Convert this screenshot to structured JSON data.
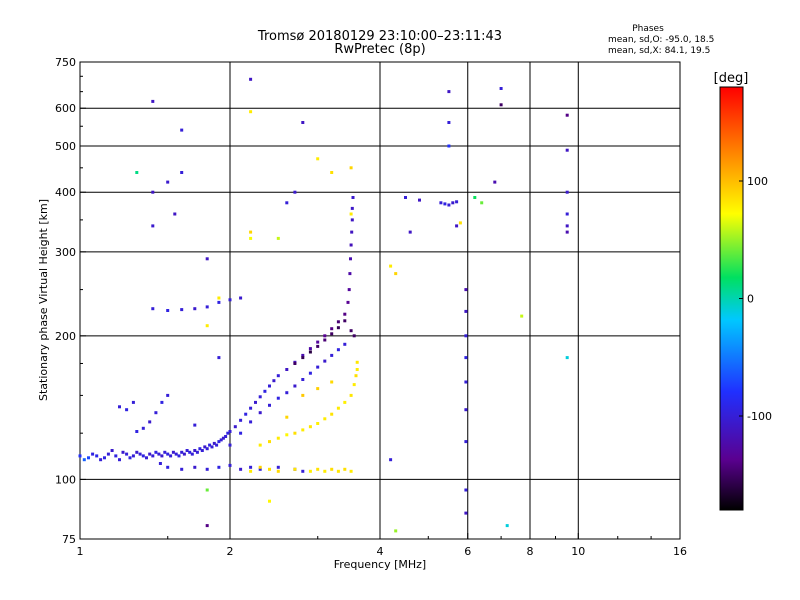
{
  "chart_data": {
    "type": "scatter",
    "title": "Tromsø 20180129 23:10:00–23:11:43",
    "subtitle": "RwPretec (8p)",
    "xlabel": "Frequency [MHz]",
    "ylabel": "Stationary phase Virtual Height [km]",
    "x_scale": "log2",
    "y_scale": "log",
    "xlim": [
      1,
      16
    ],
    "ylim": [
      75,
      750
    ],
    "x_ticks": [
      "1",
      "2",
      "4",
      "6",
      "8",
      "10",
      "16"
    ],
    "x_tick_values": [
      1,
      2,
      4,
      6,
      8,
      10,
      16
    ],
    "x_gridlines": [
      2,
      4,
      6,
      8,
      10
    ],
    "y_ticks": [
      "75",
      "100",
      "200",
      "300",
      "400",
      "500",
      "600",
      "750"
    ],
    "y_tick_values": [
      75,
      100,
      200,
      300,
      400,
      500,
      600,
      750
    ],
    "y_gridlines": [
      100,
      200,
      300,
      400,
      500,
      600
    ],
    "grid": true,
    "stats": {
      "heading": "Phases",
      "line1": "mean, sd,O: -95.0, 18.5",
      "line2": "mean, sd,X:  84.1, 19.5"
    },
    "colorbar": {
      "label": "[deg]",
      "range": [
        -180,
        180
      ],
      "ticks": [
        "100",
        "0",
        "-100"
      ],
      "tick_values": [
        100,
        0,
        -100
      ]
    },
    "series": [
      {
        "point_format": [
          "frequency_MHz",
          "virtual_height_km",
          "phase_deg"
        ],
        "points": [
          [
            1.0,
            112,
            -80
          ],
          [
            1.02,
            110,
            -60
          ],
          [
            1.04,
            111,
            -70
          ],
          [
            1.06,
            113,
            -95
          ],
          [
            1.08,
            112,
            -90
          ],
          [
            1.1,
            110,
            -100
          ],
          [
            1.12,
            111,
            -95
          ],
          [
            1.14,
            113,
            -100
          ],
          [
            1.16,
            115,
            -105
          ],
          [
            1.18,
            112,
            -95
          ],
          [
            1.2,
            110,
            -100
          ],
          [
            1.22,
            114,
            -105
          ],
          [
            1.24,
            113,
            -100
          ],
          [
            1.26,
            111,
            -95
          ],
          [
            1.28,
            112,
            -100
          ],
          [
            1.3,
            114,
            -105
          ],
          [
            1.32,
            113,
            -100
          ],
          [
            1.34,
            112,
            -95
          ],
          [
            1.36,
            111,
            -100
          ],
          [
            1.38,
            113,
            -105
          ],
          [
            1.4,
            112,
            -100
          ],
          [
            1.42,
            114,
            -95
          ],
          [
            1.44,
            113,
            -100
          ],
          [
            1.46,
            112,
            -105
          ],
          [
            1.48,
            114,
            -100
          ],
          [
            1.5,
            113,
            -95
          ],
          [
            1.52,
            112,
            -100
          ],
          [
            1.54,
            114,
            -105
          ],
          [
            1.56,
            113,
            -100
          ],
          [
            1.58,
            112,
            -95
          ],
          [
            1.6,
            114,
            -100
          ],
          [
            1.62,
            113,
            -105
          ],
          [
            1.64,
            115,
            -100
          ],
          [
            1.66,
            114,
            -95
          ],
          [
            1.68,
            113,
            -100
          ],
          [
            1.7,
            115,
            -105
          ],
          [
            1.72,
            114,
            -100
          ],
          [
            1.74,
            116,
            -95
          ],
          [
            1.76,
            115,
            -100
          ],
          [
            1.78,
            117,
            -105
          ],
          [
            1.8,
            116,
            -100
          ],
          [
            1.82,
            118,
            -95
          ],
          [
            1.84,
            117,
            -100
          ],
          [
            1.86,
            119,
            -105
          ],
          [
            1.88,
            118,
            -100
          ],
          [
            1.9,
            120,
            -95
          ],
          [
            1.92,
            121,
            -100
          ],
          [
            1.94,
            122,
            -105
          ],
          [
            1.96,
            123,
            -100
          ],
          [
            1.98,
            125,
            -95
          ],
          [
            2.0,
            126,
            -100
          ],
          [
            2.05,
            129,
            -105
          ],
          [
            2.1,
            133,
            -100
          ],
          [
            2.15,
            137,
            -95
          ],
          [
            2.2,
            141,
            -100
          ],
          [
            2.25,
            145,
            -105
          ],
          [
            2.3,
            149,
            -100
          ],
          [
            2.35,
            153,
            -95
          ],
          [
            2.4,
            157,
            -100
          ],
          [
            2.45,
            161,
            -105
          ],
          [
            2.5,
            165,
            -100
          ],
          [
            2.6,
            170,
            -110
          ],
          [
            2.7,
            176,
            -115
          ],
          [
            2.8,
            182,
            -120
          ],
          [
            2.9,
            188,
            -125
          ],
          [
            3.0,
            194,
            -130
          ],
          [
            3.1,
            200,
            -135
          ],
          [
            3.2,
            207,
            -140
          ],
          [
            3.3,
            214,
            -145
          ],
          [
            3.4,
            222,
            -140
          ],
          [
            3.45,
            235,
            -135
          ],
          [
            3.47,
            250,
            -130
          ],
          [
            3.48,
            270,
            -125
          ],
          [
            3.49,
            290,
            -120
          ],
          [
            3.5,
            310,
            -115
          ],
          [
            3.51,
            330,
            -112
          ],
          [
            3.52,
            350,
            -110
          ],
          [
            3.52,
            370,
            -108
          ],
          [
            3.53,
            390,
            -105
          ],
          [
            1.3,
            126,
            -95
          ],
          [
            1.34,
            128,
            -100
          ],
          [
            1.38,
            132,
            -105
          ],
          [
            1.42,
            138,
            -100
          ],
          [
            1.46,
            145,
            -95
          ],
          [
            1.5,
            150,
            -100
          ],
          [
            1.24,
            140,
            -95
          ],
          [
            1.28,
            145,
            -100
          ],
          [
            1.2,
            142,
            -100
          ],
          [
            1.45,
            108,
            -100
          ],
          [
            1.5,
            106,
            -95
          ],
          [
            1.6,
            105,
            -100
          ],
          [
            1.7,
            106,
            -105
          ],
          [
            1.8,
            105,
            -100
          ],
          [
            1.9,
            106,
            -95
          ],
          [
            2.0,
            107,
            -100
          ],
          [
            2.1,
            105,
            -105
          ],
          [
            2.2,
            106,
            -100
          ],
          [
            2.3,
            105,
            -95
          ],
          [
            2.5,
            106,
            -100
          ],
          [
            2.7,
            105,
            -105
          ],
          [
            2.8,
            104,
            -100
          ],
          [
            2.2,
            104,
            80
          ],
          [
            2.3,
            106,
            90
          ],
          [
            2.4,
            105,
            85
          ],
          [
            2.5,
            104,
            88
          ],
          [
            2.7,
            105,
            82
          ],
          [
            2.9,
            104,
            78
          ],
          [
            3.0,
            105,
            84
          ],
          [
            3.1,
            104,
            80
          ],
          [
            3.2,
            105,
            86
          ],
          [
            3.3,
            104,
            82
          ],
          [
            3.4,
            105,
            85
          ],
          [
            3.5,
            104,
            80
          ],
          [
            2.3,
            118,
            80
          ],
          [
            2.4,
            120,
            85
          ],
          [
            2.5,
            122,
            80
          ],
          [
            2.6,
            124,
            75
          ],
          [
            2.7,
            125,
            85
          ],
          [
            2.8,
            127,
            80
          ],
          [
            2.9,
            129,
            82
          ],
          [
            3.0,
            131,
            78
          ],
          [
            3.1,
            134,
            80
          ],
          [
            3.2,
            137,
            84
          ],
          [
            3.3,
            141,
            80
          ],
          [
            3.4,
            145,
            78
          ],
          [
            3.5,
            150,
            82
          ],
          [
            3.55,
            158,
            80
          ],
          [
            3.58,
            165,
            85
          ],
          [
            3.6,
            170,
            80
          ],
          [
            3.6,
            176,
            82
          ],
          [
            2.6,
            135,
            90
          ],
          [
            2.8,
            150,
            95
          ],
          [
            3.0,
            155,
            92
          ],
          [
            3.2,
            160,
            88
          ],
          [
            2.0,
            118,
            -100
          ],
          [
            2.1,
            125,
            -95
          ],
          [
            2.2,
            132,
            -100
          ],
          [
            2.3,
            138,
            -105
          ],
          [
            2.4,
            143,
            -100
          ],
          [
            2.5,
            148,
            -95
          ],
          [
            2.6,
            152,
            -100
          ],
          [
            2.7,
            157,
            -105
          ],
          [
            2.8,
            162,
            -100
          ],
          [
            2.9,
            167,
            -95
          ],
          [
            3.0,
            172,
            -100
          ],
          [
            3.1,
            177,
            -105
          ],
          [
            3.2,
            182,
            -100
          ],
          [
            3.3,
            187,
            -95
          ],
          [
            3.4,
            192,
            -100
          ],
          [
            1.4,
            228,
            -100
          ],
          [
            1.5,
            226,
            -95
          ],
          [
            1.6,
            227,
            -100
          ],
          [
            1.7,
            228,
            -105
          ],
          [
            1.8,
            230,
            -100
          ],
          [
            1.9,
            235,
            -95
          ],
          [
            2.0,
            238,
            -100
          ],
          [
            2.1,
            240,
            -105
          ],
          [
            2.7,
            175,
            -150
          ],
          [
            2.8,
            180,
            -155
          ],
          [
            2.9,
            185,
            -160
          ],
          [
            3.0,
            190,
            -150
          ],
          [
            3.1,
            196,
            -145
          ],
          [
            3.2,
            202,
            -150
          ],
          [
            3.3,
            208,
            -155
          ],
          [
            3.4,
            215,
            -150
          ],
          [
            3.5,
            205,
            -150
          ],
          [
            3.55,
            200,
            -150
          ],
          [
            5.3,
            380,
            -100
          ],
          [
            5.4,
            378,
            -95
          ],
          [
            5.5,
            376,
            -100
          ],
          [
            5.6,
            380,
            -105
          ],
          [
            5.7,
            382,
            -100
          ],
          [
            4.5,
            390,
            -100
          ],
          [
            4.8,
            385,
            -110
          ],
          [
            5.95,
            120,
            -100
          ],
          [
            5.95,
            140,
            -105
          ],
          [
            5.95,
            160,
            -100
          ],
          [
            5.95,
            180,
            -95
          ],
          [
            5.95,
            200,
            -100
          ],
          [
            5.95,
            225,
            -110
          ],
          [
            5.95,
            250,
            -120
          ],
          [
            5.95,
            95,
            -100
          ],
          [
            5.95,
            85,
            -110
          ],
          [
            9.5,
            490,
            -110
          ],
          [
            9.5,
            400,
            -105
          ],
          [
            9.5,
            360,
            -100
          ],
          [
            9.5,
            340,
            -110
          ],
          [
            9.5,
            330,
            -120
          ],
          [
            9.5,
            580,
            -140
          ],
          [
            9.5,
            180,
            -10
          ],
          [
            7.0,
            610,
            -150
          ],
          [
            7.0,
            660,
            -100
          ],
          [
            6.8,
            420,
            -120
          ],
          [
            6.2,
            390,
            20
          ],
          [
            6.4,
            380,
            40
          ],
          [
            7.2,
            80,
            -10
          ],
          [
            5.5,
            650,
            -110
          ],
          [
            5.5,
            560,
            -100
          ],
          [
            5.5,
            500,
            -80
          ],
          [
            1.4,
            620,
            -110
          ],
          [
            1.6,
            540,
            -100
          ],
          [
            1.4,
            400,
            -110
          ],
          [
            1.5,
            420,
            -105
          ],
          [
            1.6,
            440,
            -100
          ],
          [
            1.55,
            360,
            -110
          ],
          [
            1.4,
            340,
            -105
          ],
          [
            1.3,
            440,
            10
          ],
          [
            1.8,
            290,
            -110
          ],
          [
            2.2,
            690,
            -110
          ],
          [
            2.2,
            590,
            80
          ],
          [
            2.8,
            560,
            -110
          ],
          [
            2.6,
            380,
            -100
          ],
          [
            2.7,
            400,
            -105
          ],
          [
            3.0,
            470,
            80
          ],
          [
            3.2,
            440,
            85
          ],
          [
            3.5,
            450,
            90
          ],
          [
            3.5,
            360,
            80
          ],
          [
            4.3,
            270,
            90
          ],
          [
            4.2,
            280,
            80
          ],
          [
            4.6,
            330,
            -110
          ],
          [
            5.7,
            340,
            -110
          ],
          [
            5.8,
            345,
            85
          ],
          [
            7.7,
            220,
            60
          ],
          [
            4.3,
            78,
            50
          ],
          [
            4.2,
            110,
            -100
          ],
          [
            1.8,
            80,
            -140
          ],
          [
            1.8,
            95,
            40
          ],
          [
            1.7,
            130,
            -100
          ],
          [
            1.8,
            210,
            80
          ],
          [
            1.9,
            240,
            80
          ],
          [
            2.2,
            330,
            90
          ],
          [
            2.2,
            320,
            70
          ],
          [
            2.5,
            320,
            60
          ],
          [
            1.9,
            180,
            -100
          ],
          [
            2.4,
            90,
            75
          ]
        ]
      }
    ]
  }
}
